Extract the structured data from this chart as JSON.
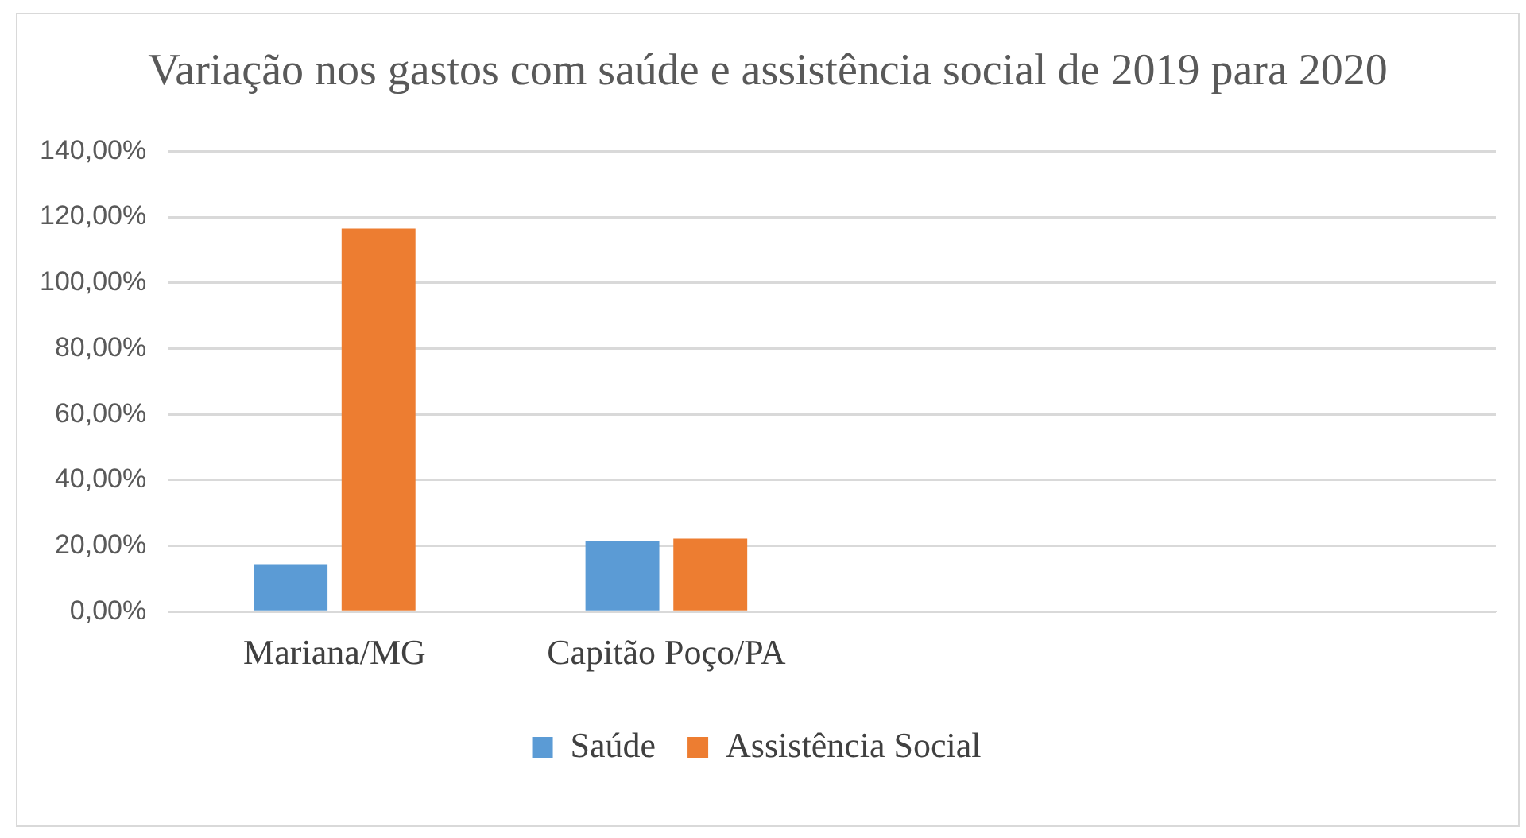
{
  "chart_data": {
    "type": "bar",
    "title": "Variação nos gastos com saúde e assistência social de 2019 para 2020",
    "categories": [
      "Mariana/MG",
      "Capitão Poço/PA",
      null,
      null
    ],
    "series": [
      {
        "name": "Saúde",
        "color": "#5b9bd5",
        "values": [
          14.2,
          21.5,
          null,
          null
        ]
      },
      {
        "name": "Assistência Social",
        "color": "#ed7d31",
        "values": [
          116.5,
          22.2,
          null,
          null
        ]
      }
    ],
    "ylim": [
      0,
      140
    ],
    "yticks": [
      {
        "value": 0,
        "label": "0,00%"
      },
      {
        "value": 20,
        "label": "20,00%"
      },
      {
        "value": 40,
        "label": "40,00%"
      },
      {
        "value": 60,
        "label": "60,00%"
      },
      {
        "value": 80,
        "label": "80,00%"
      },
      {
        "value": 100,
        "label": "100,00%"
      },
      {
        "value": 120,
        "label": "120,00%"
      },
      {
        "value": 140,
        "label": "140,00%"
      }
    ],
    "grid": "y",
    "legend": "bottom"
  }
}
